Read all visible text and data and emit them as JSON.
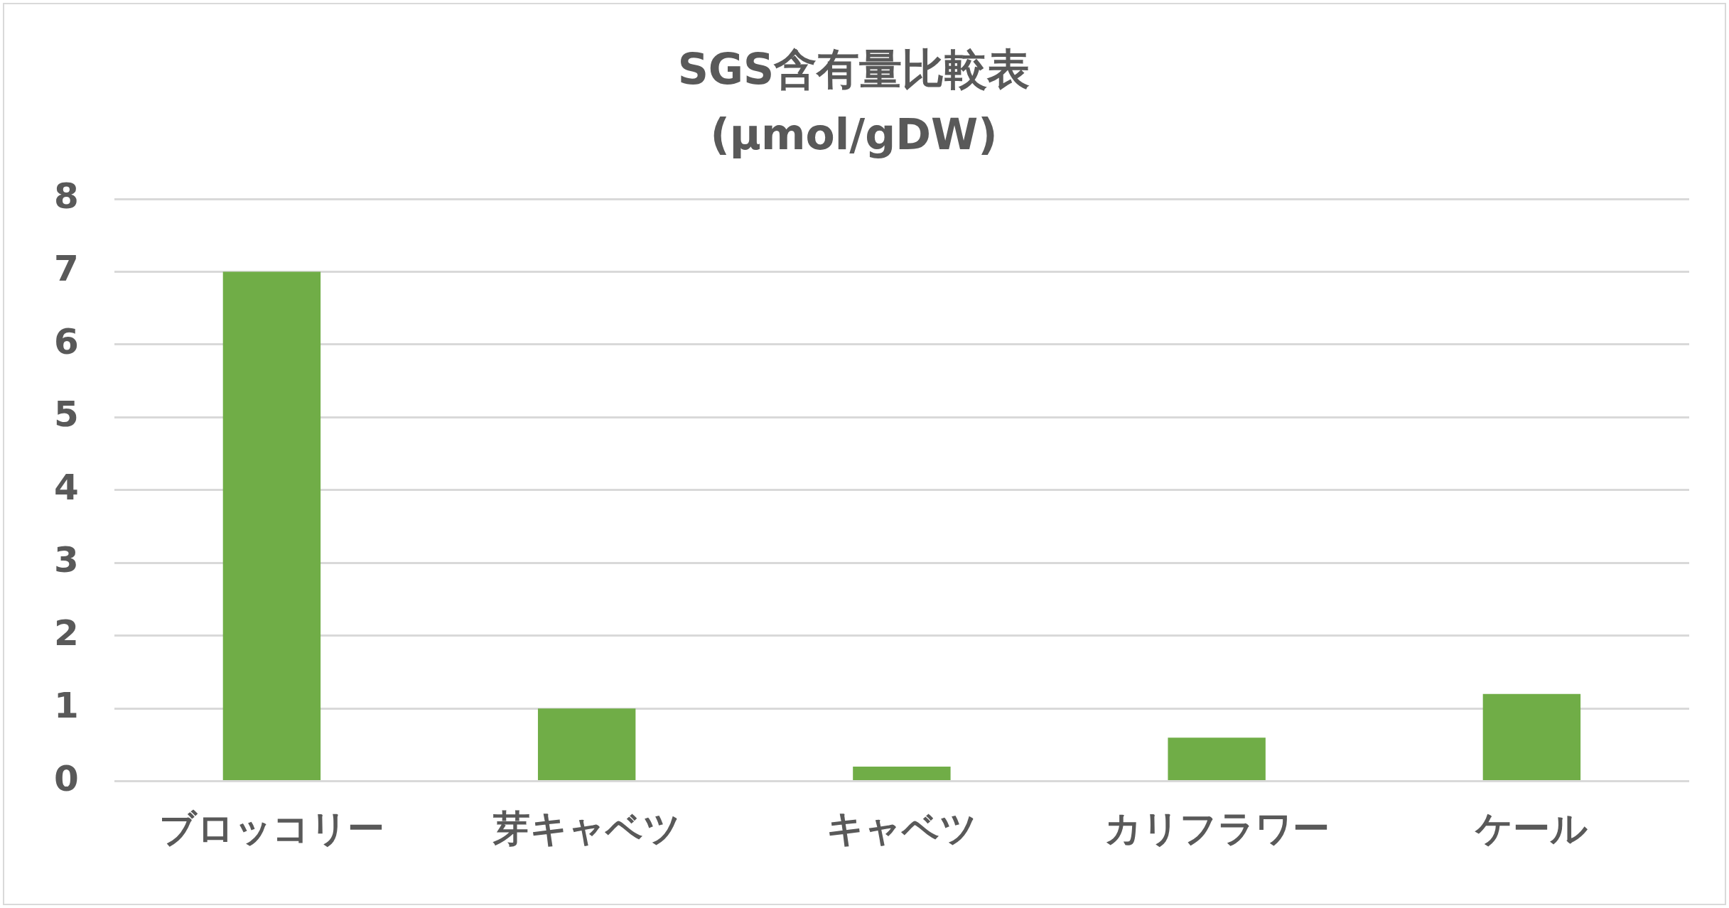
{
  "chart_data": {
    "type": "bar",
    "title": "SGS含有量比較表",
    "subtitle": "(μmol/gDW)",
    "categories": [
      "ブロッコリー",
      "芽キャベツ",
      "キャベツ",
      "カリフラワー",
      "ケール"
    ],
    "values": [
      7,
      1,
      0.2,
      0.6,
      1.2
    ],
    "color": "#70ad47",
    "ylim": [
      0,
      8
    ],
    "yticks": [
      0,
      1,
      2,
      3,
      4,
      5,
      6,
      7,
      8
    ],
    "grid": "y",
    "legend": false
  }
}
